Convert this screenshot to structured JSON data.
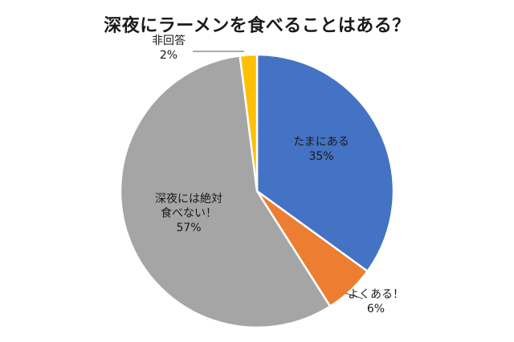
{
  "chart_data": {
    "type": "pie",
    "title": "深夜にラーメンを食べることはある？",
    "slices": [
      {
        "label": "たまにある",
        "label_lines": [
          "たまにある"
        ],
        "value": 35,
        "display": "35%",
        "color": "#4472C4",
        "label_inside": true
      },
      {
        "label": "よくある！",
        "label_lines": [
          "よくある！"
        ],
        "value": 6,
        "display": "6%",
        "color": "#ED7D31",
        "label_inside": false
      },
      {
        "label": "深夜には絶対食べない！",
        "label_lines": [
          "深夜には絶対",
          "食べない！"
        ],
        "value": 57,
        "display": "57%",
        "color": "#A5A5A5",
        "label_inside": true
      },
      {
        "label": "非回答",
        "label_lines": [
          "非回答"
        ],
        "value": 2,
        "display": "2%",
        "color": "#FFC000",
        "label_inside": false
      }
    ]
  }
}
